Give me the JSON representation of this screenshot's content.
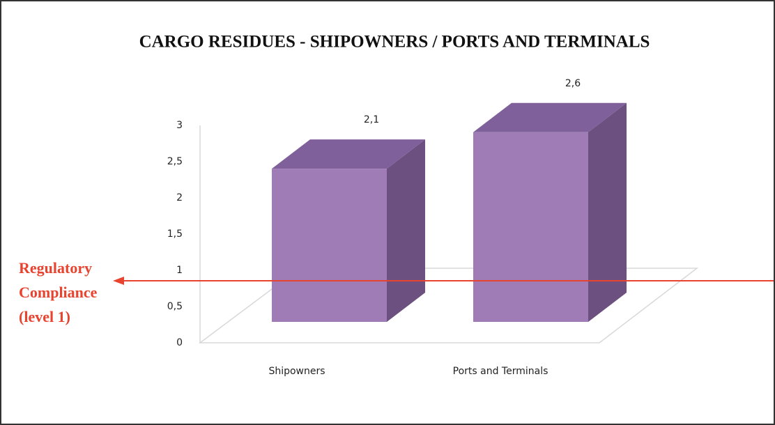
{
  "chart_data": {
    "type": "bar3d",
    "title": "CARGO RESIDUES - SHIPOWNERS / PORTS AND TERMINALS",
    "categories": [
      "Shipowners",
      "Ports and Terminals"
    ],
    "values": [
      2.1,
      2.6
    ],
    "value_labels": [
      "2,1",
      "2,6"
    ],
    "colors": {
      "front": "#a07cb6",
      "top": "#80609a",
      "side": "#6c5080"
    },
    "ylim": [
      0,
      3
    ],
    "yticks": [
      0,
      {
        "value": 0.5,
        "label": "0,5"
      },
      1,
      {
        "value": 1.5,
        "label": "1,5"
      },
      2,
      {
        "value": 2.5,
        "label": "2,5"
      },
      3
    ],
    "annotation": {
      "lines": [
        "Regulatory",
        "Compliance",
        "(level 1)"
      ],
      "y": 1,
      "color": "#e8432f"
    }
  }
}
